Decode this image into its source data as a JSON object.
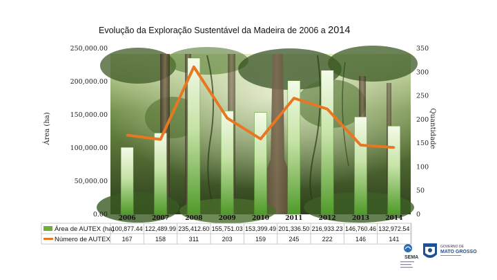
{
  "chart_data": {
    "type": "bar",
    "title_main": "Evolução da Exploração Sustentável da Madeira de 2006 a ",
    "title_year": "2014",
    "categories": [
      "2006",
      "2007",
      "2008",
      "2009",
      "2010",
      "2011",
      "2012",
      "2013",
      "2014"
    ],
    "series": [
      {
        "name": "Área de AUTEX (ha)",
        "type": "bar",
        "axis": "left",
        "values": [
          100877.44,
          122489.99,
          235412.6,
          155751.03,
          153399.49,
          201336.5,
          216933.23,
          146760.46,
          132972.54
        ],
        "labels": [
          "100,877.44",
          "122,489.99",
          "235,412.60",
          "155,751.03",
          "153,399.49",
          "201,336.50",
          "216,933.23",
          "146,760.46",
          "132,972.54"
        ],
        "color": "#6fae3a"
      },
      {
        "name": "Número de AUTEX",
        "type": "line",
        "axis": "right",
        "values": [
          167,
          158,
          311,
          203,
          159,
          245,
          222,
          146,
          141
        ],
        "color": "#e87722"
      }
    ],
    "ylabel": "Área (ha)",
    "y2label": "Quantidade",
    "ylim": [
      0,
      250000
    ],
    "y2lim": [
      0,
      350
    ],
    "yticks": [
      "250,000.00",
      "200,000.00",
      "150,000.00",
      "100,000.00",
      "50,000.00",
      "0.00"
    ],
    "y2ticks": [
      "350",
      "300",
      "250",
      "200",
      "150",
      "100",
      "50",
      "0"
    ],
    "legend": "data-table",
    "grid": false
  },
  "logos": {
    "left": "SEMA",
    "right_line1": "GOVERNO DE",
    "right_line2": "MATO GROSSO"
  },
  "colors": {
    "forest_dark": "#1f3316",
    "forest_mid": "#4d6b2e",
    "forest_light": "#9fbf6a",
    "trunk": "#6b5a45",
    "bar": "#6fae3a",
    "line": "#e87722"
  }
}
